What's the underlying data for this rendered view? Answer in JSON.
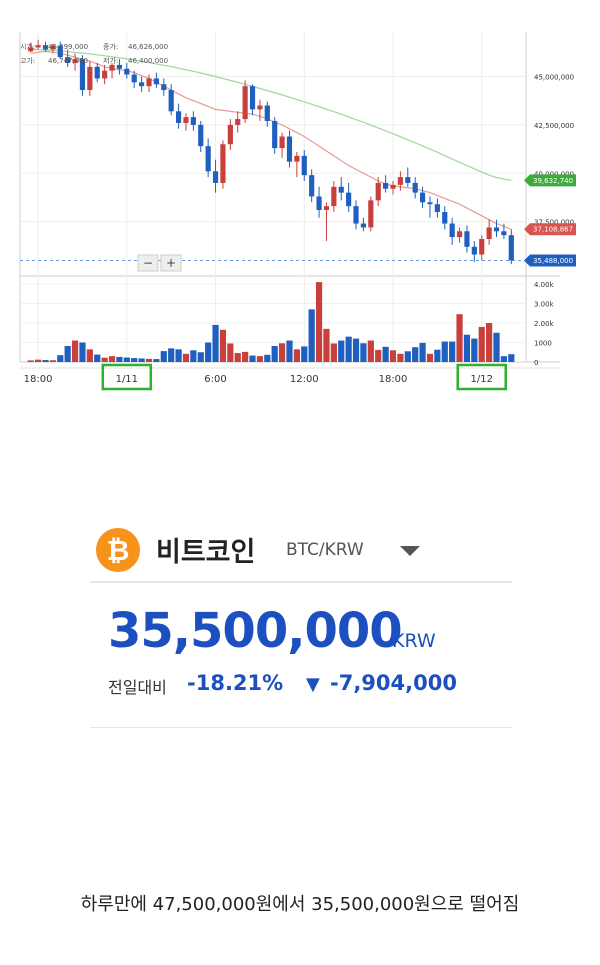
{
  "ohlc_header": {
    "open_label": "시가:",
    "open_value": "46,499,000",
    "close_label": "종가:",
    "close_value": "46,626,000",
    "high_label": "고가:",
    "high_value": "46,747,000",
    "low_label": "저가:",
    "low_value": "46,400,000"
  },
  "zoom_controls": {
    "minus": "−",
    "plus": "+"
  },
  "chart_data": [
    {
      "type": "candlestick",
      "title": "",
      "x_ticks": [
        "18:00",
        "1/11",
        "6:00",
        "12:00",
        "18:00",
        "1/12"
      ],
      "highlighted_x_ticks": [
        "1/11",
        "1/12"
      ],
      "y_ticks": [
        "45,000,000",
        "42,500,000",
        "40,000,000",
        "37,500,000"
      ],
      "ylim": [
        35000000,
        47300000
      ],
      "price_tags": [
        {
          "name": "ma-long",
          "value": 39632740,
          "label": "39,632,740",
          "color": "#3daa3d"
        },
        {
          "name": "ma-short",
          "value": 37108867,
          "label": "37,108,867",
          "color": "#d9534f"
        },
        {
          "name": "current",
          "value": 35488000,
          "label": "35,488,000",
          "color": "#1f5fbf"
        }
      ],
      "colors": {
        "up": "#c8403c",
        "down": "#1f5fbf",
        "ma_short": "#e59c95",
        "ma_long": "#9fd89a"
      },
      "grid": true,
      "candles": [
        [
          46300000,
          46750000,
          46250000,
          46500000
        ],
        [
          46500000,
          46900000,
          46400000,
          46620000
        ],
        [
          46620000,
          46800000,
          46300000,
          46400000
        ],
        [
          46400000,
          46700000,
          46200000,
          46600000
        ],
        [
          46600000,
          46800000,
          45900000,
          46000000
        ],
        [
          46000000,
          46400000,
          45500000,
          45700000
        ],
        [
          45700000,
          46200000,
          45300000,
          45900000
        ],
        [
          45900000,
          46100000,
          44000000,
          44300000
        ],
        [
          44300000,
          45800000,
          44000000,
          45500000
        ],
        [
          45500000,
          45700000,
          44700000,
          44900000
        ],
        [
          44900000,
          45600000,
          44600000,
          45300000
        ],
        [
          45300000,
          45700000,
          44900000,
          45600000
        ],
        [
          45600000,
          45900000,
          45100000,
          45400000
        ],
        [
          45400000,
          45700000,
          44900000,
          45100000
        ],
        [
          45100000,
          45300000,
          44400000,
          44700000
        ],
        [
          44700000,
          45000000,
          44200000,
          44500000
        ],
        [
          44500000,
          45100000,
          44200000,
          44900000
        ],
        [
          44900000,
          45200000,
          44400000,
          44600000
        ],
        [
          44600000,
          44900000,
          44000000,
          44300000
        ],
        [
          44300000,
          44600000,
          43000000,
          43200000
        ],
        [
          43200000,
          43600000,
          42300000,
          42600000
        ],
        [
          42600000,
          43100000,
          42200000,
          42900000
        ],
        [
          42900000,
          43200000,
          42200000,
          42500000
        ],
        [
          42500000,
          42700000,
          41100000,
          41400000
        ],
        [
          41400000,
          41800000,
          39800000,
          40100000
        ],
        [
          40100000,
          40700000,
          39000000,
          39500000
        ],
        [
          39500000,
          41700000,
          39200000,
          41500000
        ],
        [
          41500000,
          42800000,
          41200000,
          42500000
        ],
        [
          42500000,
          43200000,
          42100000,
          42800000
        ],
        [
          42800000,
          44800000,
          42600000,
          44500000
        ],
        [
          44500000,
          44600000,
          43000000,
          43300000
        ],
        [
          43300000,
          43800000,
          42700000,
          43500000
        ],
        [
          43500000,
          43700000,
          42400000,
          42700000
        ],
        [
          42700000,
          42900000,
          41000000,
          41300000
        ],
        [
          41300000,
          42100000,
          40800000,
          41900000
        ],
        [
          41900000,
          42200000,
          40300000,
          40600000
        ],
        [
          40600000,
          41100000,
          39800000,
          40900000
        ],
        [
          40900000,
          41200000,
          39600000,
          39900000
        ],
        [
          39900000,
          40200000,
          38500000,
          38800000
        ],
        [
          38800000,
          39300000,
          37700000,
          38100000
        ],
        [
          38100000,
          38500000,
          36500000,
          38300000
        ],
        [
          38300000,
          39600000,
          38000000,
          39300000
        ],
        [
          39300000,
          39800000,
          38600000,
          39000000
        ],
        [
          39000000,
          39500000,
          38000000,
          38300000
        ],
        [
          38300000,
          38600000,
          37100000,
          37400000
        ],
        [
          37400000,
          37700000,
          37000000,
          37200000
        ],
        [
          37200000,
          38800000,
          37000000,
          38600000
        ],
        [
          38600000,
          39800000,
          38300000,
          39500000
        ],
        [
          39500000,
          39900000,
          39000000,
          39200000
        ],
        [
          39200000,
          39600000,
          38900000,
          39400000
        ],
        [
          39400000,
          40100000,
          39100000,
          39800000
        ],
        [
          39800000,
          40300000,
          39300000,
          39500000
        ],
        [
          39500000,
          39800000,
          38700000,
          39000000
        ],
        [
          39000000,
          39300000,
          38200000,
          38500000
        ],
        [
          38500000,
          38800000,
          37700000,
          38400000
        ],
        [
          38400000,
          38700000,
          37700000,
          38000000
        ],
        [
          38000000,
          38300000,
          37100000,
          37400000
        ],
        [
          37400000,
          37700000,
          36300000,
          36700000
        ],
        [
          36700000,
          37200000,
          36400000,
          37000000
        ],
        [
          37000000,
          37300000,
          35900000,
          36200000
        ],
        [
          36200000,
          36500000,
          35400000,
          35800000
        ],
        [
          35800000,
          36800000,
          35500000,
          36600000
        ],
        [
          36600000,
          37600000,
          36300000,
          37200000
        ],
        [
          37200000,
          37600000,
          36700000,
          37000000
        ],
        [
          37000000,
          37400000,
          36600000,
          36800000
        ],
        [
          36800000,
          37100000,
          35300000,
          35500000
        ]
      ],
      "ma_short": [
        46200000,
        46250000,
        46300000,
        46250000,
        46200000,
        46100000,
        46000000,
        45900000,
        45800000,
        45650000,
        45500000,
        45400000,
        45350000,
        45300000,
        45200000,
        45050000,
        44900000,
        44700000,
        44500000,
        44300000,
        44100000,
        43900000,
        43750000,
        43600000,
        43450000,
        43300000,
        43250000,
        43200000,
        43150000,
        43100000,
        43050000,
        42950000,
        42800000,
        42650000,
        42500000,
        42300000,
        42100000,
        41900000,
        41650000,
        41400000,
        41150000,
        40900000,
        40650000,
        40400000,
        40200000,
        40000000,
        39800000,
        39600000,
        39450000,
        39350000,
        39300000,
        39250000,
        39200000,
        39100000,
        39000000,
        38850000,
        38700000,
        38550000,
        38400000,
        38200000,
        38000000,
        37800000,
        37600000,
        37400000,
        37250000,
        37108867
      ],
      "ma_long": [
        46400000,
        46390000,
        46370000,
        46350000,
        46320000,
        46290000,
        46250000,
        46210000,
        46170000,
        46120000,
        46070000,
        46020000,
        45970000,
        45910000,
        45850000,
        45790000,
        45720000,
        45650000,
        45580000,
        45510000,
        45430000,
        45350000,
        45270000,
        45180000,
        45090000,
        45000000,
        44900000,
        44800000,
        44700000,
        44600000,
        44490000,
        44380000,
        44270000,
        44160000,
        44050000,
        43930000,
        43810000,
        43690000,
        43570000,
        43440000,
        43310000,
        43180000,
        43050000,
        42910000,
        42770000,
        42630000,
        42490000,
        42340000,
        42190000,
        42040000,
        41890000,
        41730000,
        41570000,
        41410000,
        41250000,
        41080000,
        40910000,
        40740000,
        40570000,
        40400000,
        40230000,
        40060000,
        39900000,
        39780000,
        39700000,
        39632740
      ],
      "volume_ticks": [
        "4.00k",
        "3.00k",
        "2.00k",
        "1000",
        "0"
      ],
      "volume_ylim": [
        0,
        4000
      ],
      "volume": [
        80,
        120,
        100,
        90,
        350,
        820,
        1100,
        1000,
        650,
        380,
        220,
        300,
        260,
        230,
        200,
        180,
        160,
        150,
        560,
        700,
        650,
        420,
        600,
        500,
        1000,
        1900,
        1650,
        950,
        460,
        520,
        330,
        300,
        370,
        820,
        960,
        1100,
        650,
        800,
        2700,
        4100,
        1700,
        950,
        1100,
        1300,
        1200,
        960,
        1100,
        620,
        780,
        600,
        420,
        550,
        760,
        980,
        420,
        630,
        1050,
        1050,
        2450,
        1400,
        1200,
        1800,
        2000,
        1500,
        300,
        400
      ],
      "volume_up": [
        true,
        true,
        false,
        true,
        false,
        false,
        true,
        false,
        true,
        false,
        true,
        true,
        false,
        false,
        false,
        false,
        true,
        false,
        false,
        false,
        false,
        true,
        false,
        false,
        false,
        false,
        true,
        true,
        true,
        true,
        false,
        true,
        false,
        false,
        true,
        false,
        true,
        false,
        false,
        true,
        true,
        true,
        false,
        false,
        false,
        false,
        true,
        true,
        false,
        true,
        true,
        false,
        false,
        false,
        true,
        false,
        false,
        false,
        true,
        false,
        false,
        true,
        true,
        false,
        false,
        false
      ]
    }
  ],
  "ticker": {
    "coin_symbol": "₿",
    "coin_name": "비트코인",
    "pair": "BTC/KRW",
    "price": "35,500,000",
    "unit": "KRW",
    "change_label": "전일대비",
    "change_pct": "-18.21%",
    "change_arrow": "▼",
    "change_abs": "-7,904,000",
    "accent_color": "#1c4fc0",
    "icon_color": "#f7931a"
  },
  "caption": "하루만에 47,500,000원에서 35,500,000원으로 떨어짐"
}
